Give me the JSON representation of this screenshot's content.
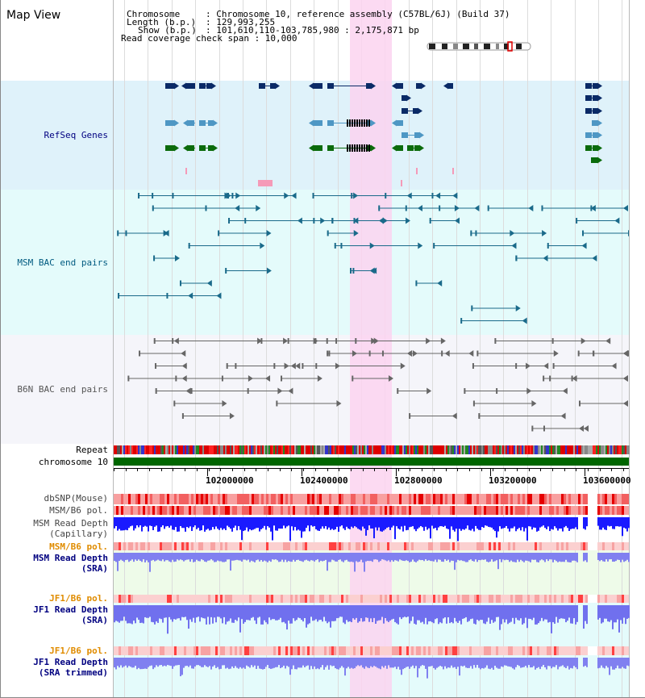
{
  "title": "Map View",
  "header": {
    "chromosome_key": "Chromosome",
    "chromosome_value": ": Chromosome 10, reference assembly (C57BL/6J) (Build 37)",
    "length_key": "Length (b.p.)",
    "length_value": ": 129,993,255",
    "show_key": "Show (b.p.)",
    "show_value": ": 101,610,110-103,785,980 : 2,175,871 bp",
    "coverage_text": "Read coverage check span : 10,000"
  },
  "tracks": {
    "refseq": "RefSeq Genes",
    "msm_bac": "MSM BAC end pairs",
    "b6n_bac": "B6N BAC end pairs",
    "repeat": "Repeat",
    "chromosome": "chromosome 10",
    "dbsnp": "dbSNP(Mouse)",
    "msm_b6_pol": "MSM/B6 pol.",
    "msm_depth_cap_1": "MSM Read Depth",
    "msm_depth_cap_2": "(Capillary)",
    "msm_b6_pol_2": "MSM/B6 pol.",
    "msm_depth_sra_1": "MSM Read Depth",
    "msm_depth_sra_2": "(SRA)",
    "jf1_b6_pol": "JF1/B6 pol.",
    "jf1_depth_sra_1": "JF1 Read Depth",
    "jf1_depth_sra_2": "(SRA)",
    "jf1_b6_pol_2": "JF1/B6 pol.",
    "jf1_depth_trim_1": "JF1 Read Depth",
    "jf1_depth_trim_2": "(SRA trimmed)"
  },
  "axis": {
    "ticks": [
      "102000000",
      "102400000",
      "102800000",
      "103200000",
      "103600000"
    ]
  },
  "colors": {
    "refseq_bg": "#dff2fa",
    "msm_bg": "#e4fbfb",
    "b6n_bg": "#f5f5fa",
    "highlight": "#fbd3f0",
    "gene_dark": "#0a2a66",
    "gene_light": "#4e97c4",
    "gene_green": "#0b6b0b",
    "msm_bac": "#1a6a8a",
    "b6n_bac": "#666666",
    "chrom": "#006600",
    "depth_blue": "#1a1aff",
    "depth_light": "#8080f0",
    "label_navy": "#000080",
    "label_teal": "#005a80",
    "label_orange": "#e08c00"
  }
}
